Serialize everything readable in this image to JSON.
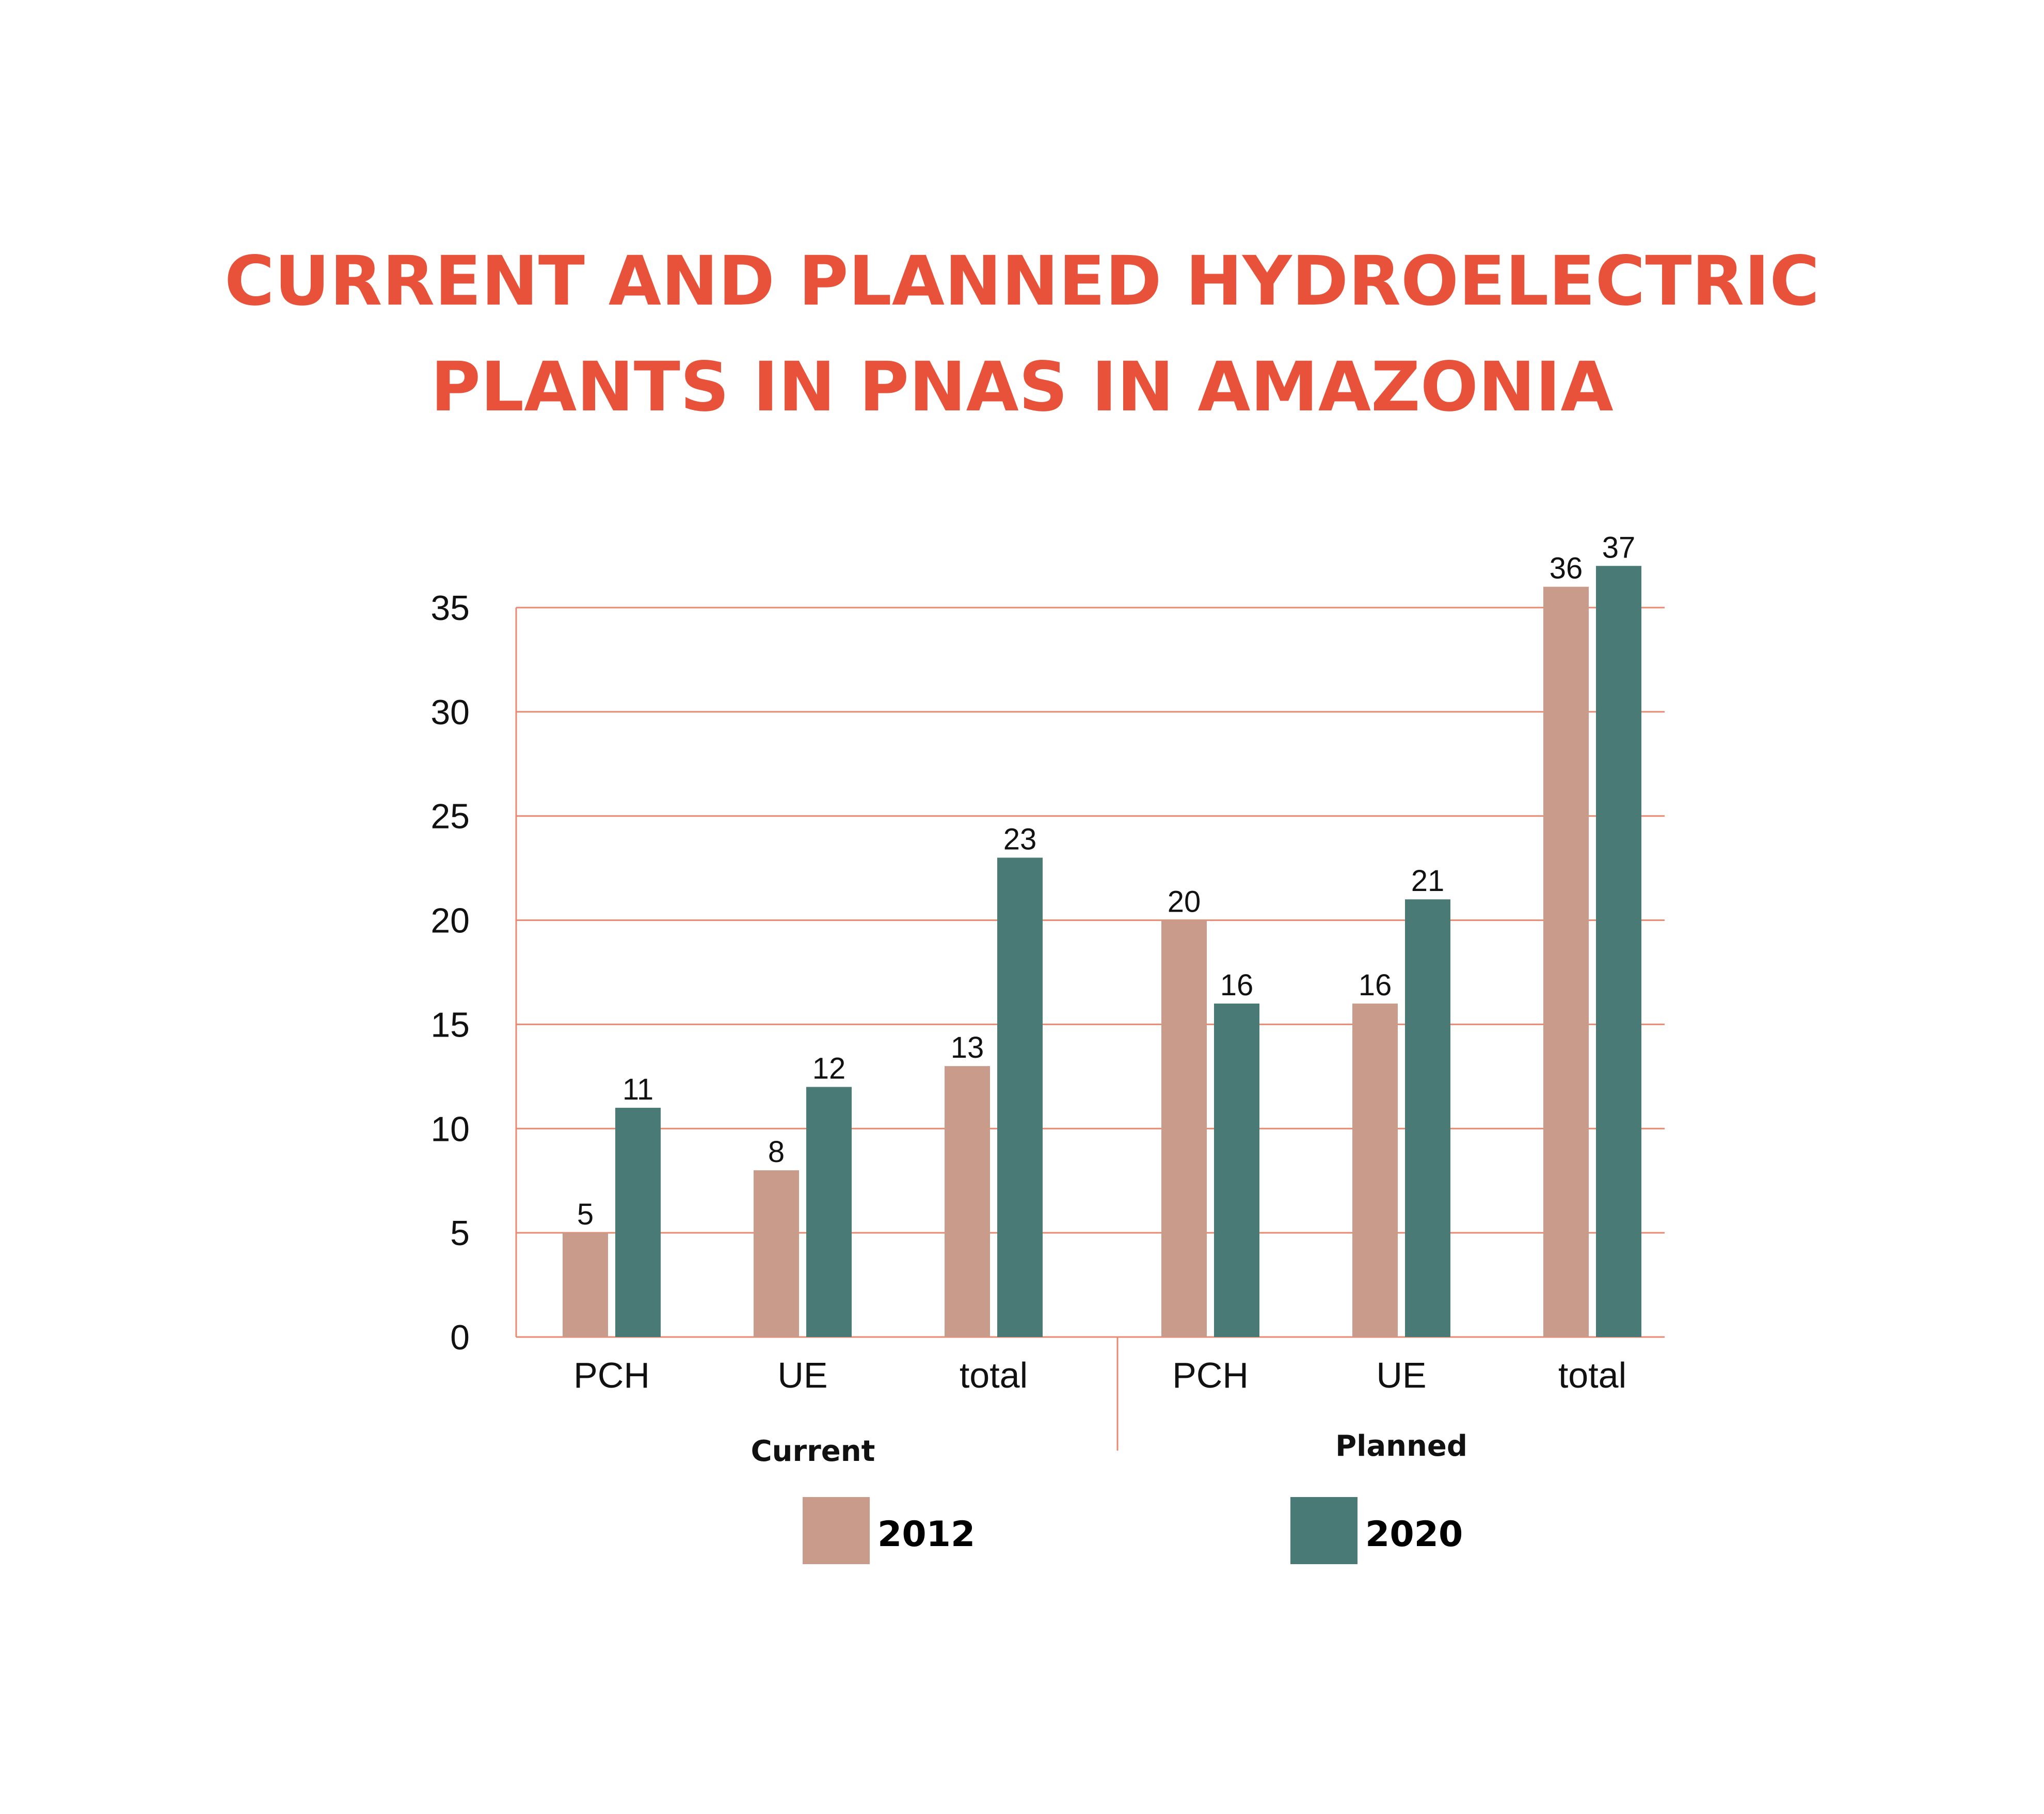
{
  "chart_data": {
    "type": "bar",
    "title_lines": [
      "CURRENT AND PLANNED HYDROELECTRIC",
      "PLANTS IN PNAS IN AMAZONIA"
    ],
    "categories": [
      "PCH",
      "UE",
      "total",
      "PCH",
      "UE",
      "total"
    ],
    "groups": [
      {
        "label": "Current",
        "categories": [
          "PCH",
          "UE",
          "total"
        ]
      },
      {
        "label": "Planned",
        "categories": [
          "PCH",
          "UE",
          "total"
        ]
      }
    ],
    "series": [
      {
        "name": "2012",
        "color": "#c89b8b",
        "values": [
          5,
          8,
          13,
          20,
          16,
          36
        ]
      },
      {
        "name": "2020",
        "color": "#4a7a76",
        "values": [
          11,
          12,
          23,
          16,
          21,
          37
        ]
      }
    ],
    "y_ticks": [
      0,
      5,
      10,
      15,
      20,
      25,
      30,
      35
    ],
    "ylim": [
      0,
      35
    ],
    "xlabel": "",
    "ylabel": "",
    "grid": true,
    "legend_position": "bottom"
  },
  "colors": {
    "title": "#e8523a",
    "grid": "#e98a70",
    "text": "#111111"
  }
}
